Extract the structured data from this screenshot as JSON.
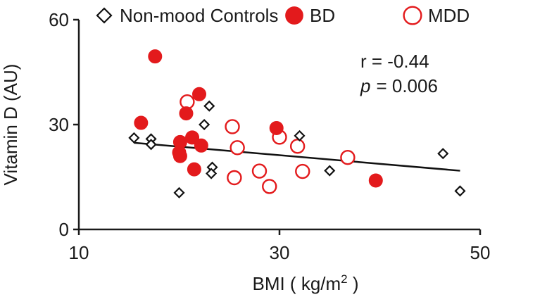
{
  "chart_data": {
    "type": "scatter",
    "xlabel": "BMI ( kg/m",
    "xlabel_sup": "2",
    "xlabel_end": " )",
    "ylabel": "Vitamin D (AU)",
    "xlim": [
      10,
      50
    ],
    "ylim": [
      0,
      60
    ],
    "xticks": [
      10,
      30,
      50
    ],
    "yticks": [
      0,
      30,
      60
    ],
    "legend_position": "top",
    "annotation": {
      "r_text": "r = -0.44",
      "p_label": "p",
      "p_value": "=  0.006"
    },
    "trendline": {
      "x": [
        15.5,
        48
      ],
      "y": [
        24.8,
        16.8
      ]
    },
    "series": [
      {
        "name": "Non-mood Controls",
        "marker": "diamond-open",
        "color": "#111111",
        "points": [
          [
            15.5,
            26.2
          ],
          [
            17.2,
            25.9
          ],
          [
            17.2,
            24.3
          ],
          [
            20,
            10.5
          ],
          [
            22.5,
            30
          ],
          [
            23,
            35.3
          ],
          [
            23.3,
            17.8
          ],
          [
            23.2,
            16
          ],
          [
            32,
            26.8
          ],
          [
            35,
            16.8
          ],
          [
            46.3,
            21.7
          ],
          [
            48,
            11
          ]
        ]
      },
      {
        "name": "BD",
        "marker": "circle-filled",
        "color": "#e31a1c",
        "points": [
          [
            17.6,
            49.5
          ],
          [
            16.2,
            30.5
          ],
          [
            20.1,
            25
          ],
          [
            20,
            22
          ],
          [
            20.1,
            21
          ],
          [
            20.7,
            33.2
          ],
          [
            21.3,
            26.3
          ],
          [
            21.5,
            17.2
          ],
          [
            22,
            38.7
          ],
          [
            22.2,
            24
          ],
          [
            29.7,
            29
          ],
          [
            39.6,
            14
          ]
        ]
      },
      {
        "name": "MDD",
        "marker": "circle-open",
        "color": "#e31a1c",
        "points": [
          [
            20.8,
            36.5
          ],
          [
            25.3,
            29.4
          ],
          [
            25.8,
            23.4
          ],
          [
            25.5,
            14.8
          ],
          [
            28,
            16.7
          ],
          [
            29,
            12.3
          ],
          [
            30,
            26.4
          ],
          [
            31.8,
            23.8
          ],
          [
            32.3,
            16.6
          ],
          [
            36.8,
            20.6
          ]
        ]
      }
    ]
  }
}
